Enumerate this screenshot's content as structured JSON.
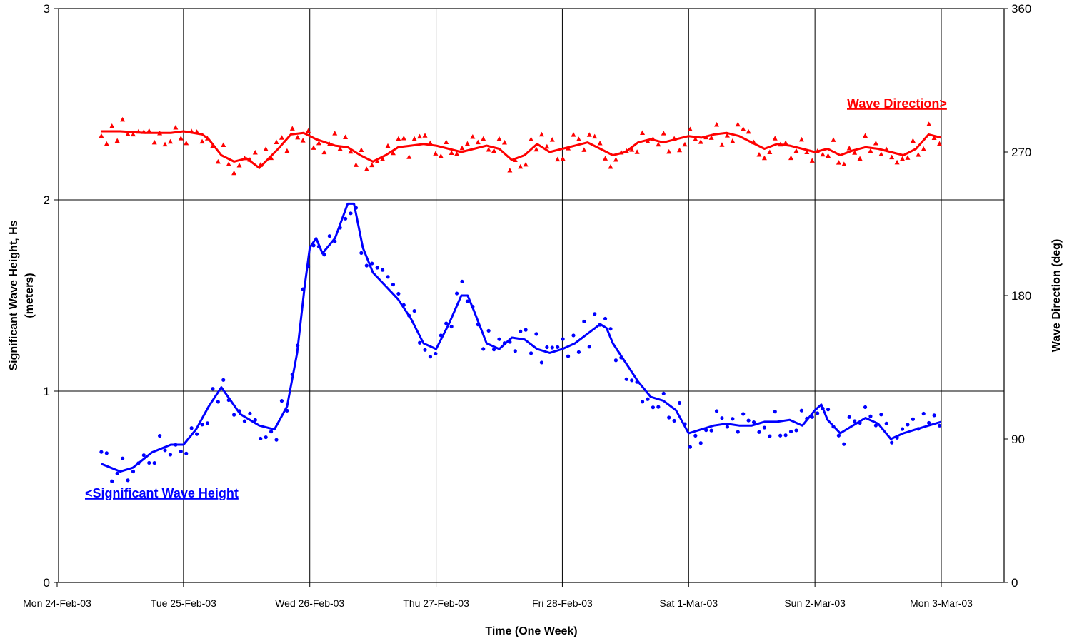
{
  "chart_data": {
    "type": "line",
    "xlabel": "Time (One Week)",
    "ylabel_left_line1": "Significant Wave Height, Hs",
    "ylabel_left_line2": "(meters)",
    "ylabel_right": "Wave Direction (deg)",
    "x_ticks": [
      "Mon 24-Feb-03",
      "Tue 25-Feb-03",
      "Wed 26-Feb-03",
      "Thu 27-Feb-03",
      "Fri 28-Feb-03",
      "Sat 1-Mar-03",
      "Sun 2-Mar-03",
      "Mon 3-Mar-03"
    ],
    "xlim_days": [
      0,
      7
    ],
    "left_axis": {
      "ylim": [
        0,
        3
      ],
      "ticks": [
        "0",
        "1",
        "2",
        "3"
      ]
    },
    "right_axis": {
      "ylim": [
        0,
        360
      ],
      "ticks": [
        "0",
        "90",
        "180",
        "270",
        "360"
      ]
    },
    "grid": true,
    "annotations": {
      "wave_height": "<Significant Wave Height",
      "wave_direction": "Wave Direction>"
    },
    "colors": {
      "wave_height": "#0000ff",
      "wave_direction": "#ff0000"
    },
    "series": [
      {
        "name": "Significant Wave Height",
        "axis": "left",
        "style": "line+dots",
        "x": [
          0.35,
          0.5,
          0.6,
          0.75,
          0.9,
          1.0,
          1.1,
          1.2,
          1.3,
          1.45,
          1.6,
          1.72,
          1.82,
          1.9,
          1.96,
          2.0,
          2.05,
          2.1,
          2.2,
          2.3,
          2.35,
          2.42,
          2.5,
          2.6,
          2.7,
          2.8,
          2.9,
          3.0,
          3.1,
          3.2,
          3.25,
          3.3,
          3.4,
          3.5,
          3.6,
          3.7,
          3.8,
          3.9,
          4.0,
          4.1,
          4.2,
          4.3,
          4.35,
          4.4,
          4.5,
          4.6,
          4.7,
          4.8,
          4.9,
          5.0,
          5.1,
          5.2,
          5.3,
          5.4,
          5.5,
          5.6,
          5.7,
          5.8,
          5.9,
          6.0,
          6.05,
          6.1,
          6.2,
          6.3,
          6.4,
          6.5,
          6.6,
          6.7,
          6.8,
          6.9,
          7.0
        ],
        "y": [
          0.62,
          0.58,
          0.6,
          0.68,
          0.72,
          0.72,
          0.8,
          0.92,
          1.02,
          0.88,
          0.82,
          0.8,
          0.92,
          1.2,
          1.55,
          1.75,
          1.8,
          1.72,
          1.8,
          1.98,
          1.98,
          1.75,
          1.62,
          1.55,
          1.48,
          1.38,
          1.25,
          1.22,
          1.35,
          1.5,
          1.5,
          1.42,
          1.25,
          1.22,
          1.28,
          1.27,
          1.22,
          1.2,
          1.22,
          1.25,
          1.3,
          1.35,
          1.33,
          1.25,
          1.15,
          1.05,
          0.97,
          0.95,
          0.9,
          0.78,
          0.8,
          0.82,
          0.83,
          0.82,
          0.82,
          0.84,
          0.84,
          0.85,
          0.82,
          0.9,
          0.93,
          0.85,
          0.78,
          0.82,
          0.86,
          0.83,
          0.75,
          0.78,
          0.8,
          0.82,
          0.84
        ]
      },
      {
        "name": "Wave Direction",
        "axis": "right",
        "style": "line+triangles",
        "x": [
          0.35,
          0.5,
          0.7,
          0.9,
          1.0,
          1.15,
          1.2,
          1.3,
          1.4,
          1.5,
          1.6,
          1.75,
          1.85,
          1.95,
          2.05,
          2.2,
          2.3,
          2.4,
          2.5,
          2.6,
          2.7,
          2.8,
          2.9,
          3.0,
          3.1,
          3.2,
          3.3,
          3.4,
          3.5,
          3.6,
          3.7,
          3.8,
          3.9,
          4.0,
          4.1,
          4.2,
          4.3,
          4.4,
          4.5,
          4.6,
          4.7,
          4.8,
          4.9,
          5.0,
          5.1,
          5.2,
          5.3,
          5.4,
          5.5,
          5.6,
          5.7,
          5.8,
          5.9,
          6.0,
          6.1,
          6.2,
          6.3,
          6.4,
          6.5,
          6.6,
          6.7,
          6.8,
          6.9,
          7.0
        ],
        "y": [
          283,
          283,
          282,
          282,
          283,
          281,
          278,
          268,
          264,
          266,
          260,
          272,
          281,
          282,
          278,
          274,
          273,
          268,
          264,
          268,
          273,
          274,
          275,
          274,
          272,
          270,
          272,
          274,
          272,
          265,
          268,
          275,
          270,
          272,
          274,
          276,
          272,
          268,
          270,
          276,
          278,
          276,
          278,
          280,
          279,
          281,
          282,
          280,
          276,
          272,
          275,
          274,
          272,
          270,
          272,
          268,
          271,
          273,
          272,
          270,
          268,
          272,
          281,
          279
        ]
      }
    ]
  }
}
